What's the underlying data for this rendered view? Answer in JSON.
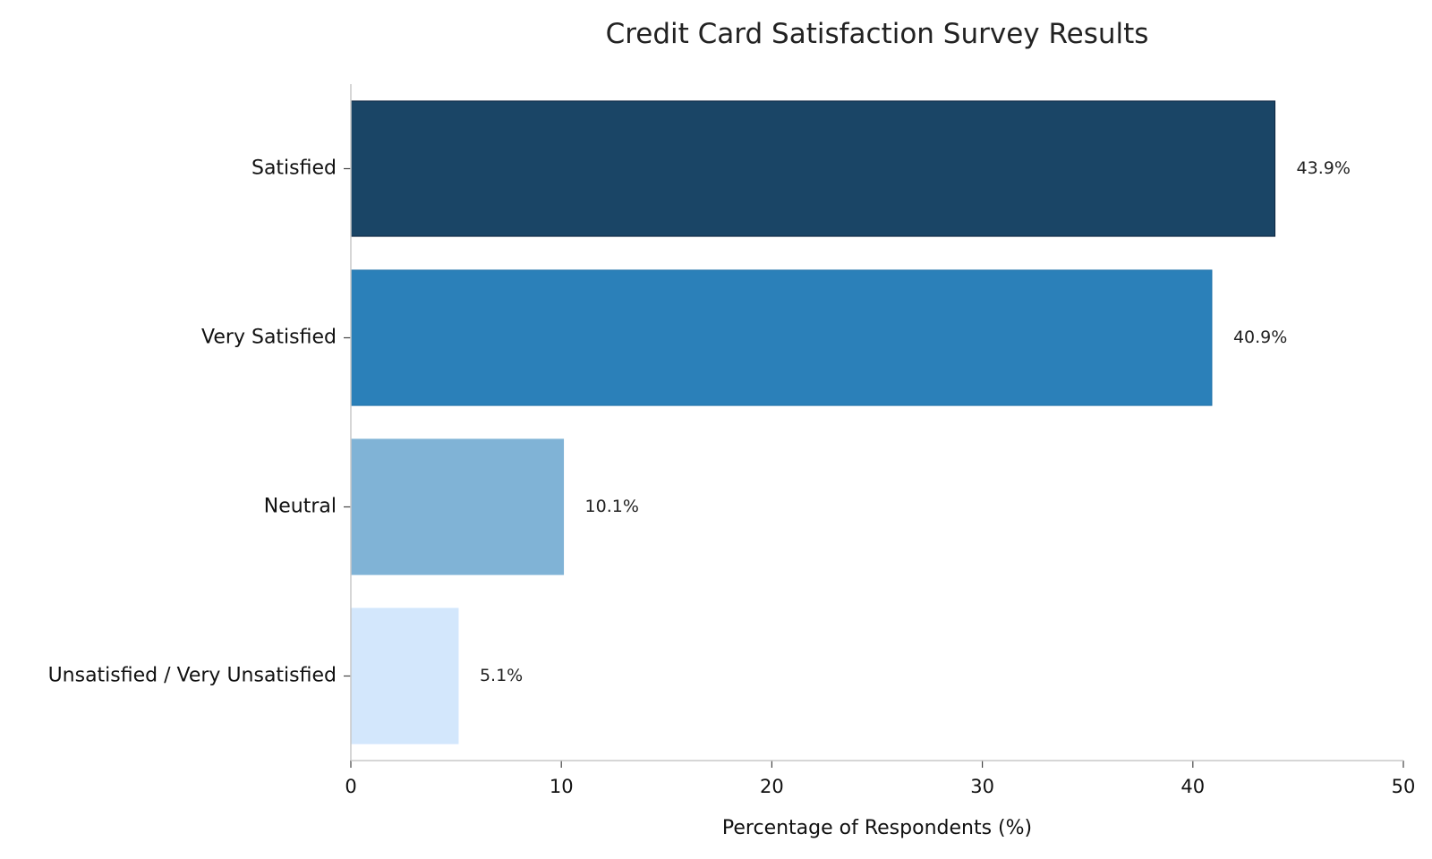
{
  "chart_data": {
    "type": "bar",
    "orientation": "horizontal",
    "title": "Credit Card Satisfaction Survey Results",
    "xlabel": "Percentage of Respondents (%)",
    "ylabel": "",
    "xlim": [
      0,
      50
    ],
    "xticks": [
      "0",
      "10",
      "20",
      "30",
      "40",
      "50"
    ],
    "grid": false,
    "categories": [
      "Satisfied",
      "Very Satisfied",
      "Neutral",
      "Unsatisfied / Very Unsatisfied"
    ],
    "values": [
      43.9,
      40.9,
      10.1,
      5.1
    ],
    "value_labels": [
      "43.9%",
      "40.9%",
      "10.1%",
      "5.1%"
    ],
    "colors": [
      "#1a4566",
      "#2b80b9",
      "#80b3d6",
      "#d3e7fc"
    ],
    "edge_colors": [
      "#0d2440",
      "#2070a8",
      "#80b3d6",
      "#d3e7fc"
    ]
  }
}
